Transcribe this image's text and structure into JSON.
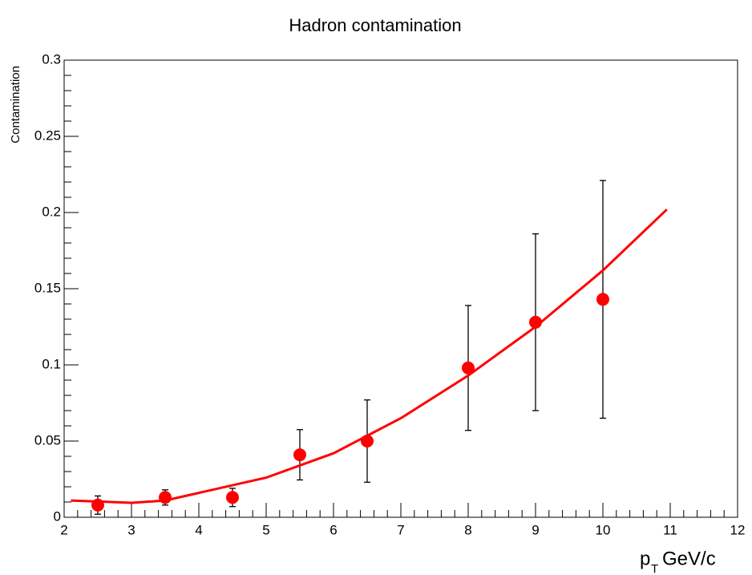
{
  "chart_data": {
    "type": "scatter",
    "title": "Hadron contamination",
    "y_label": "Contamination",
    "x_label": "p",
    "x_label_sub": "T",
    "x_label_unit": "GeV/c",
    "xlim": [
      2,
      12
    ],
    "ylim": [
      0,
      0.3
    ],
    "xticks": [
      2,
      3,
      4,
      5,
      6,
      7,
      8,
      9,
      10,
      11,
      12
    ],
    "yticks": [
      0,
      0.05,
      0.1,
      0.15,
      0.2,
      0.25,
      0.3
    ],
    "series": [
      {
        "type": "errorbar",
        "color": "#ff0000",
        "error_color": "#000000",
        "x": [
          2.5,
          3.5,
          4.5,
          5.5,
          6.5,
          8,
          9,
          10
        ],
        "values": [
          0.008,
          0.013,
          0.013,
          0.041,
          0.05,
          0.098,
          0.128,
          0.143
        ],
        "errors": [
          0.006,
          0.005,
          0.006,
          0.0165,
          0.027,
          0.041,
          0.058,
          0.078
        ]
      },
      {
        "type": "line",
        "color": "#ff0000",
        "x": [
          2.1,
          3,
          3.5,
          4,
          5,
          6,
          7,
          8,
          9,
          10,
          10.95
        ],
        "values": [
          0.011,
          0.0095,
          0.011,
          0.016,
          0.026,
          0.042,
          0.065,
          0.093,
          0.125,
          0.162,
          0.202
        ]
      }
    ]
  }
}
